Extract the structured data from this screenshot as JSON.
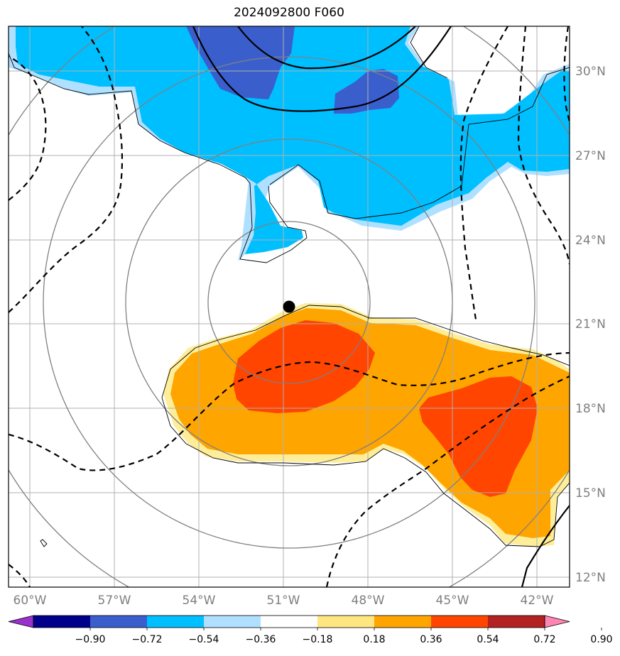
{
  "title": "2024092800 F060",
  "chart_data": {
    "type": "heatmap",
    "title": "2024092800 F060",
    "projection": "lat-lon map",
    "lon_range": [
      -61,
      -40.2
    ],
    "lat_range": [
      11.6,
      31.8
    ],
    "lon_ticks": [
      -60,
      -57,
      -54,
      -51,
      -48,
      -45,
      -42
    ],
    "lon_tick_labels": [
      "60°W",
      "57°W",
      "54°W",
      "51°W",
      "48°W",
      "45°W",
      "42°W"
    ],
    "lat_ticks": [
      12,
      15,
      18,
      21,
      24,
      27,
      30
    ],
    "lat_tick_labels": [
      "12°N",
      "15°N",
      "18°N",
      "21°N",
      "24°N",
      "27°N",
      "30°N"
    ],
    "grid": true,
    "center_marker": {
      "lon": -50.8,
      "lat": 21.6
    },
    "range_rings": "4 concentric circles around center",
    "colorbar": {
      "boundaries": [
        -0.9,
        -0.72,
        -0.54,
        -0.36,
        -0.18,
        0.18,
        0.36,
        0.54,
        0.72,
        0.9
      ],
      "tick_labels": [
        "−0.90",
        "−0.72",
        "−0.54",
        "−0.36",
        "−0.18",
        "0.18",
        "0.36",
        "0.54",
        "0.72",
        "0.90"
      ],
      "colors": [
        "#9932cc",
        "#00008b",
        "#3a5fcd",
        "#00bfff",
        "#b0e0ff",
        "#ffffff",
        "#ffe680",
        "#ffa500",
        "#ff4500",
        "#b22222",
        "#ff85b3"
      ],
      "extend": "both"
    },
    "fields": [
      {
        "name": "negative_region",
        "level_min": -0.54,
        "level_max": -0.36,
        "color": "#00bfff"
      },
      {
        "name": "negative_core",
        "level_min": -0.72,
        "level_max": -0.54,
        "color": "#3a5fcd"
      },
      {
        "name": "positive_region",
        "level_min": 0.36,
        "level_max": 0.54,
        "color": "#ffa500"
      },
      {
        "name": "positive_core",
        "level_min": 0.54,
        "level_max": 0.72,
        "color": "#ff4500"
      }
    ],
    "contours": [
      {
        "style": "solid",
        "color": "#000000"
      },
      {
        "style": "dashed",
        "color": "#000000"
      }
    ]
  }
}
